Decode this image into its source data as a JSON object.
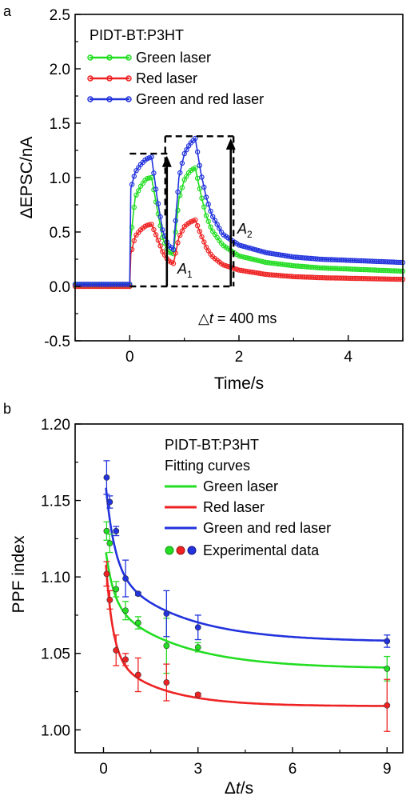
{
  "chart_data": [
    {
      "panel_label": "a",
      "type": "line",
      "xlabel": "Time/s",
      "ylabel": "ΔEPSC/nA",
      "xlim": [
        -1,
        5
      ],
      "ylim": [
        -0.5,
        2.5
      ],
      "xticks": [
        "0",
        "2",
        "4"
      ],
      "xtick_values": [
        0,
        2,
        4
      ],
      "yticks": [
        "-0.5",
        "0.0",
        "0.5",
        "1.0",
        "1.5",
        "2.0",
        "2.5"
      ],
      "ytick_values": [
        -0.5,
        0.0,
        0.5,
        1.0,
        1.5,
        2.0,
        2.5
      ],
      "legend_title": "PIDT-BT:P3HT",
      "legend_position": "top-left",
      "series": [
        {
          "name": "Green laser",
          "color": "#22dd22",
          "x": [
            -1,
            0,
            0.02,
            0.1,
            0.2,
            0.3,
            0.4,
            0.5,
            0.6,
            0.7,
            0.8,
            0.9,
            1.0,
            1.1,
            1.2,
            1.3,
            1.4,
            1.5,
            1.7,
            2.0,
            2.5,
            3.0,
            3.5,
            4.0,
            4.5,
            5.0
          ],
          "y": [
            0.01,
            0.01,
            0.45,
            0.82,
            0.92,
            0.99,
            1.0,
            0.72,
            0.45,
            0.32,
            0.3,
            0.8,
            0.98,
            1.06,
            1.09,
            0.85,
            0.65,
            0.52,
            0.38,
            0.28,
            0.22,
            0.19,
            0.17,
            0.16,
            0.15,
            0.14
          ]
        },
        {
          "name": "Red laser",
          "color": "#ee2222",
          "x": [
            -1,
            0,
            0.02,
            0.1,
            0.2,
            0.3,
            0.4,
            0.5,
            0.6,
            0.7,
            0.8,
            0.9,
            1.0,
            1.1,
            1.2,
            1.3,
            1.4,
            1.5,
            1.7,
            2.0,
            2.5,
            3.0,
            3.5,
            4.0,
            4.5,
            5.0
          ],
          "y": [
            0.0,
            0.0,
            0.3,
            0.46,
            0.52,
            0.56,
            0.57,
            0.45,
            0.32,
            0.24,
            0.21,
            0.45,
            0.55,
            0.59,
            0.61,
            0.48,
            0.36,
            0.28,
            0.2,
            0.15,
            0.11,
            0.09,
            0.08,
            0.075,
            0.07,
            0.065
          ]
        },
        {
          "name": "Green and red laser",
          "color": "#2233dd",
          "x": [
            -1,
            0,
            0.02,
            0.1,
            0.2,
            0.3,
            0.4,
            0.5,
            0.6,
            0.7,
            0.8,
            0.9,
            1.0,
            1.1,
            1.2,
            1.3,
            1.4,
            1.5,
            1.7,
            2.0,
            2.5,
            3.0,
            3.5,
            4.0,
            4.5,
            5.0
          ],
          "y": [
            0.02,
            0.02,
            0.9,
            1.05,
            1.12,
            1.17,
            1.19,
            0.82,
            0.52,
            0.38,
            0.34,
            1.0,
            1.22,
            1.31,
            1.36,
            1.05,
            0.82,
            0.66,
            0.48,
            0.38,
            0.31,
            0.27,
            0.25,
            0.24,
            0.23,
            0.22
          ]
        }
      ],
      "annotations": {
        "a1": "A",
        "a1_sub": "1",
        "a2": "A",
        "a2_sub": "2",
        "delta_t_prefix": "△",
        "delta_t_var": "t",
        "delta_t_rest": " = 400 ms"
      },
      "dashed_guides": {
        "pulse1_x": [
          0,
          0.65
        ],
        "pulse1_level": 1.22,
        "pulse2_x": [
          0.65,
          1.85
        ],
        "pulse2_level": 1.38,
        "arrow1_x": 0.68,
        "arrow2_x": 1.85,
        "baseline_y": 0.0
      }
    },
    {
      "panel_label": "b",
      "type": "scatter",
      "xlabel": "Δt/s",
      "xlabel_prefix": "Δ",
      "xlabel_var": "t",
      "xlabel_suffix": "/s",
      "ylabel": "PPF index",
      "xlim": [
        -0.9,
        9.5
      ],
      "ylim": [
        0.985,
        1.2
      ],
      "xticks": [
        "0",
        "3",
        "6",
        "9"
      ],
      "xtick_values": [
        0,
        3,
        6,
        9
      ],
      "yticks": [
        "1.00",
        "1.05",
        "1.10",
        "1.15",
        "1.20"
      ],
      "ytick_values": [
        1.0,
        1.05,
        1.1,
        1.15,
        1.2
      ],
      "legend_title": "PIDT-BT:P3HT",
      "legend_subtitle": "Fitting curves",
      "legend_markers_label": "Experimental data",
      "legend_position": "top-right",
      "series": [
        {
          "name": "Green laser",
          "color": "#22dd22",
          "x": [
            0.1,
            0.2,
            0.4,
            0.7,
            1.1,
            2.0,
            3.0,
            9.0
          ],
          "y": [
            1.13,
            1.122,
            1.092,
            1.078,
            1.07,
            1.055,
            1.054,
            1.04
          ],
          "err": [
            0.006,
            0.006,
            0.005,
            0.006,
            0.004,
            0.018,
            0.003,
            0.008
          ],
          "fit_y0": 1.04,
          "fit_a1": 0.045,
          "fit_t1": 0.25,
          "fit_a2": 0.045,
          "fit_t2": 2.2
        },
        {
          "name": "Red laser",
          "color": "#ee2222",
          "x": [
            0.1,
            0.2,
            0.4,
            0.7,
            1.1,
            2.0,
            3.0,
            9.0
          ],
          "y": [
            1.102,
            1.085,
            1.052,
            1.046,
            1.036,
            1.031,
            1.023,
            1.016
          ],
          "err": [
            0.008,
            0.006,
            0.01,
            0.004,
            0.011,
            0.012,
            0.001,
            0.017
          ],
          "fit_y0": 1.0155,
          "fit_a1": 0.085,
          "fit_t1": 0.22,
          "fit_a2": 0.035,
          "fit_t2": 1.6
        },
        {
          "name": "Green and red laser",
          "color": "#2233dd",
          "x": [
            0.1,
            0.2,
            0.4,
            0.7,
            1.1,
            2.0,
            3.0,
            9.0
          ],
          "y": [
            1.165,
            1.149,
            1.13,
            1.099,
            1.089,
            1.076,
            1.067,
            1.058
          ],
          "err": [
            0.011,
            0.004,
            0.003,
            0.012,
            0.001,
            0.015,
            0.008,
            0.004
          ],
          "fit_y0": 1.0575,
          "fit_a1": 0.07,
          "fit_t1": 0.28,
          "fit_a2": 0.05,
          "fit_t2": 2.2
        }
      ]
    }
  ]
}
